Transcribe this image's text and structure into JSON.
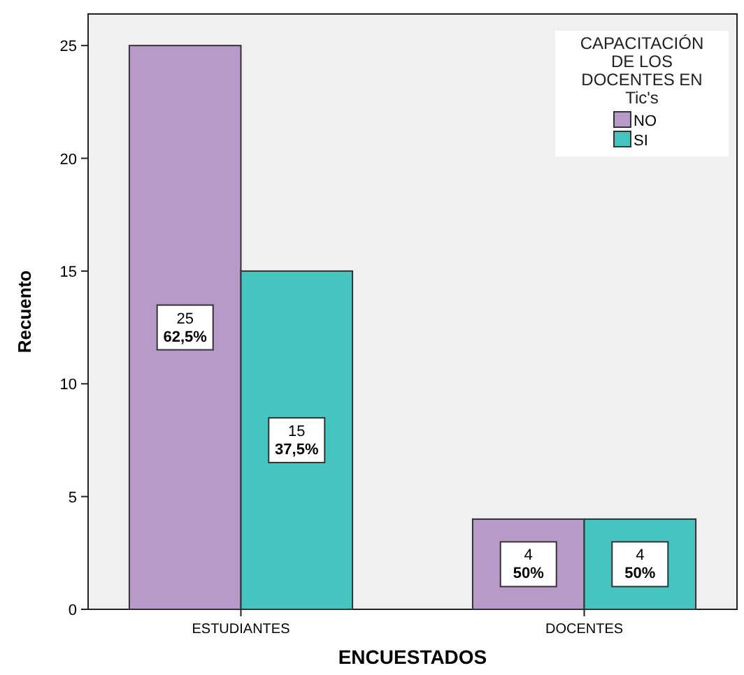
{
  "chart_data": {
    "type": "bar",
    "xlabel": "ENCUESTADOS",
    "ylabel": "Recuento",
    "legend_title": "CAPACITACIÓN DE LOS DOCENTES EN Tic's",
    "categories": [
      "ESTUDIANTES",
      "DOCENTES"
    ],
    "series": [
      {
        "name": "NO",
        "color": "#b89ac8",
        "values": [
          25,
          4
        ],
        "value_labels": [
          "25\n62,5%",
          "4\n50%"
        ]
      },
      {
        "name": "SI",
        "color": "#45c4c0",
        "values": [
          15,
          4
        ],
        "value_labels": [
          "15\n37,5%",
          "4\n50%"
        ]
      }
    ],
    "ylim": [
      0,
      26.4
    ],
    "yticks": [
      0,
      5,
      10,
      15,
      20,
      25
    ],
    "grid": false,
    "legend": "top right"
  }
}
